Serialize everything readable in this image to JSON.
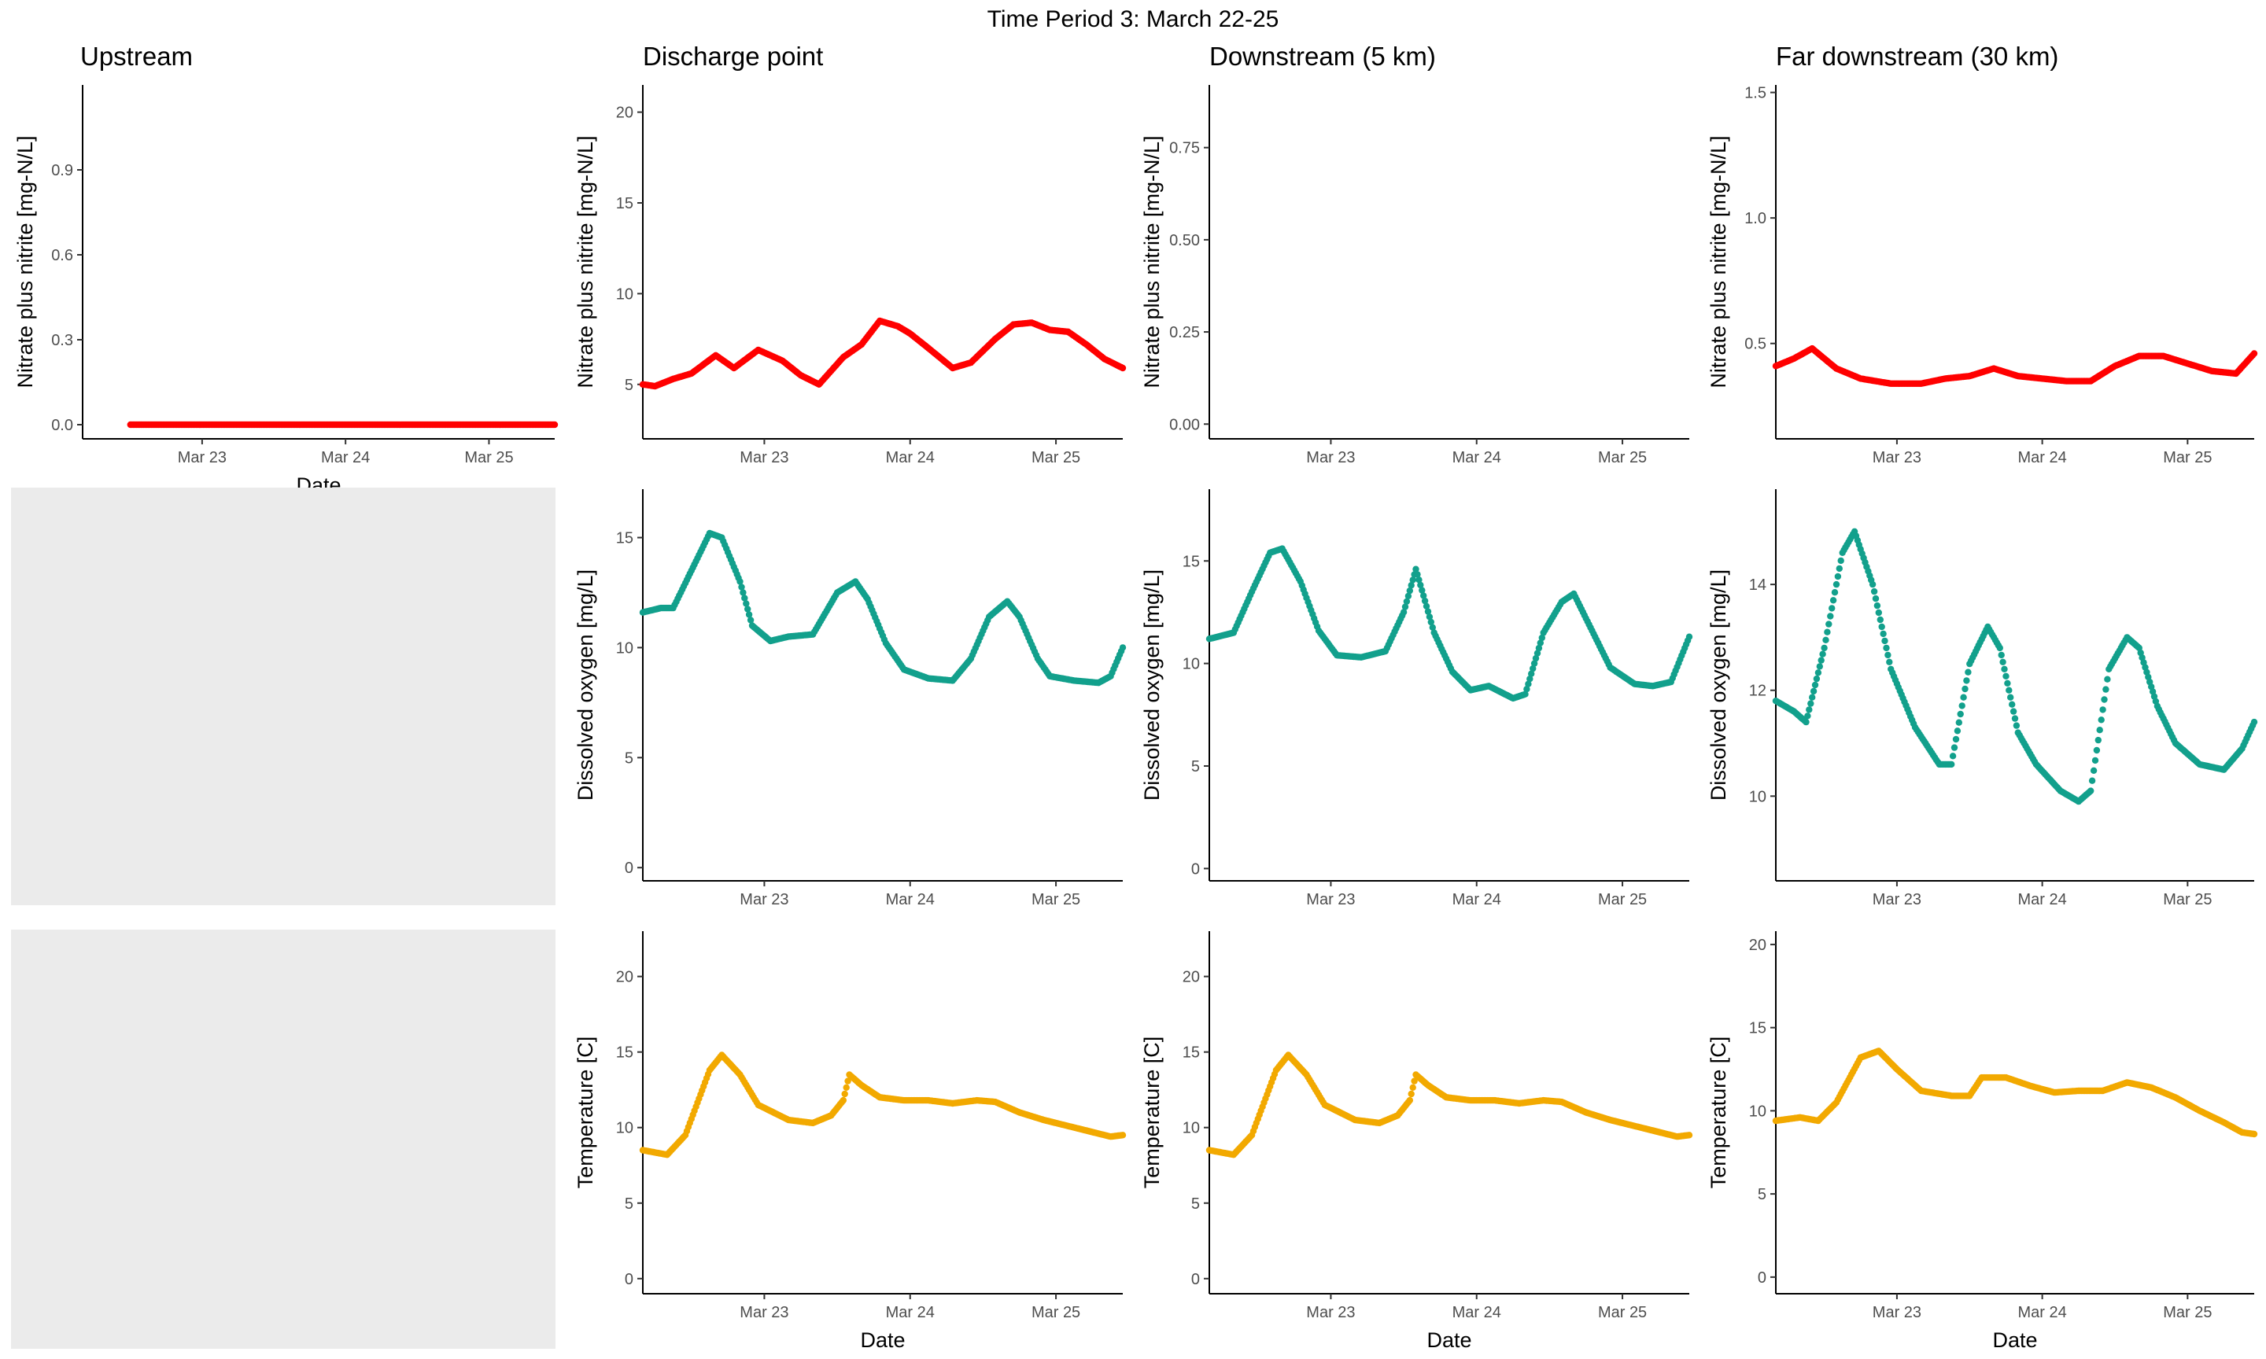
{
  "figure": {
    "title": "Time Period 3: March 22-25",
    "colors": {
      "nitrate": "#ff0000",
      "oxygen": "#12a08c",
      "temperature": "#f2a900",
      "empty_panel": "#ebebeb"
    }
  },
  "chart_data": [
    {
      "type": "scatter",
      "title": "Upstream",
      "xlabel": "Date",
      "ylabel": "Nitrate plus nitrite [mg-N/L]",
      "xlim": [
        "2023-03-22T04:00",
        "2023-03-25T11:00"
      ],
      "ylim": [
        -0.05,
        1.2
      ],
      "xticks": [
        "Mar 23",
        "Mar 24",
        "Mar 25"
      ],
      "yticks": [
        "0.0",
        "0.3",
        "0.6",
        "0.9"
      ],
      "color": "#ff0000",
      "x": [
        "2023-03-22T12:00",
        "2023-03-25T11:00"
      ],
      "y": [
        0.0,
        0.0
      ],
      "sample_interval_hours": 0.25
    },
    {
      "type": "scatter",
      "title": "Discharge point",
      "xlabel": "",
      "ylabel": "Nitrate plus nitrite [mg-N/L]",
      "xlim": [
        "2023-03-22T04:00",
        "2023-03-25T11:00"
      ],
      "ylim": [
        2.0,
        21.5
      ],
      "xticks": [
        "Mar 23",
        "Mar 24",
        "Mar 25"
      ],
      "yticks": [
        "5",
        "10",
        "15",
        "20"
      ],
      "color": "#ff0000",
      "x": [
        "2023-03-22T04:00",
        "2023-03-22T06:00",
        "2023-03-22T09:00",
        "2023-03-22T12:00",
        "2023-03-22T16:00",
        "2023-03-22T19:00",
        "2023-03-22T23:00",
        "2023-03-23T01:00",
        "2023-03-23T03:00",
        "2023-03-23T06:00",
        "2023-03-23T09:00",
        "2023-03-23T13:00",
        "2023-03-23T16:00",
        "2023-03-23T19:00",
        "2023-03-23T22:00",
        "2023-03-24T00:00",
        "2023-03-24T03:00",
        "2023-03-24T07:00",
        "2023-03-24T10:00",
        "2023-03-24T14:00",
        "2023-03-24T17:00",
        "2023-03-24T20:00",
        "2023-03-24T23:00",
        "2023-03-25T02:00",
        "2023-03-25T05:00",
        "2023-03-25T08:00",
        "2023-03-25T11:00"
      ],
      "y": [
        5.0,
        4.9,
        5.3,
        5.6,
        6.6,
        5.9,
        6.9,
        6.6,
        6.3,
        5.5,
        5.0,
        6.5,
        7.2,
        8.5,
        8.2,
        7.8,
        7.0,
        5.9,
        6.2,
        7.5,
        8.3,
        8.4,
        8.0,
        7.9,
        7.2,
        6.4,
        5.9
      ],
      "sample_interval_hours": 0.25
    },
    {
      "type": "scatter",
      "title": "Downstream (5 km)",
      "xlabel": "",
      "ylabel": "Nitrate plus nitrite [mg-N/L]",
      "xlim": [
        "2023-03-22T04:00",
        "2023-03-25T11:00"
      ],
      "ylim": [
        -0.04,
        0.92
      ],
      "xticks": [
        "Mar 23",
        "Mar 24",
        "Mar 25"
      ],
      "yticks": [
        "0.00",
        "0.25",
        "0.50",
        "0.75"
      ],
      "color": "#ff0000",
      "x": [],
      "y": []
    },
    {
      "type": "scatter",
      "title": "Far downstream (30 km)",
      "xlabel": "",
      "ylabel": "Nitrate plus nitrite [mg-N/L]",
      "xlim": [
        "2023-03-22T04:00",
        "2023-03-25T11:00"
      ],
      "ylim": [
        0.12,
        1.53
      ],
      "xticks": [
        "Mar 23",
        "Mar 24",
        "Mar 25"
      ],
      "yticks": [
        "0.5",
        "1.0",
        "1.5"
      ],
      "color": "#ff0000",
      "x": [
        "2023-03-22T04:00",
        "2023-03-22T07:00",
        "2023-03-22T10:00",
        "2023-03-22T14:00",
        "2023-03-22T18:00",
        "2023-03-22T23:00",
        "2023-03-23T04:00",
        "2023-03-23T08:00",
        "2023-03-23T12:00",
        "2023-03-23T16:00",
        "2023-03-23T20:00",
        "2023-03-24T00:00",
        "2023-03-24T04:00",
        "2023-03-24T08:00",
        "2023-03-24T12:00",
        "2023-03-24T16:00",
        "2023-03-24T20:00",
        "2023-03-25T00:00",
        "2023-03-25T04:00",
        "2023-03-25T08:00",
        "2023-03-25T11:00"
      ],
      "y": [
        0.41,
        0.44,
        0.48,
        0.4,
        0.36,
        0.34,
        0.34,
        0.36,
        0.37,
        0.4,
        0.37,
        0.36,
        0.35,
        0.35,
        0.41,
        0.45,
        0.45,
        0.42,
        0.39,
        0.38,
        0.46
      ],
      "sample_interval_hours": 0.25
    },
    {
      "type": "empty",
      "title": "",
      "color": "#ebebeb"
    },
    {
      "type": "scatter",
      "title": "",
      "xlabel": "",
      "ylabel": "Dissolved oxygen [mg/L]",
      "xlim": [
        "2023-03-22T04:00",
        "2023-03-25T11:00"
      ],
      "ylim": [
        -0.6,
        17.2
      ],
      "xticks": [
        "Mar 23",
        "Mar 24",
        "Mar 25"
      ],
      "yticks": [
        "0",
        "5",
        "10",
        "15"
      ],
      "color": "#12a08c",
      "x": [
        "2023-03-22T04:00",
        "2023-03-22T07:00",
        "2023-03-22T09:00",
        "2023-03-22T12:00",
        "2023-03-22T15:00",
        "2023-03-22T17:00",
        "2023-03-22T20:00",
        "2023-03-22T22:00",
        "2023-03-23T01:00",
        "2023-03-23T04:00",
        "2023-03-23T08:00",
        "2023-03-23T12:00",
        "2023-03-23T15:00",
        "2023-03-23T17:00",
        "2023-03-23T20:00",
        "2023-03-23T23:00",
        "2023-03-24T03:00",
        "2023-03-24T07:00",
        "2023-03-24T10:00",
        "2023-03-24T13:00",
        "2023-03-24T16:00",
        "2023-03-24T18:00",
        "2023-03-24T21:00",
        "2023-03-24T23:00",
        "2023-03-25T03:00",
        "2023-03-25T07:00",
        "2023-03-25T09:00",
        "2023-03-25T11:00"
      ],
      "y": [
        11.6,
        11.8,
        11.8,
        13.5,
        15.2,
        15.0,
        13.0,
        11.0,
        10.3,
        10.5,
        10.6,
        12.5,
        13.0,
        12.2,
        10.2,
        9.0,
        8.6,
        8.5,
        9.5,
        11.4,
        12.1,
        11.4,
        9.5,
        8.7,
        8.5,
        8.4,
        8.7,
        10.0
      ],
      "sample_interval_hours": 0.25
    },
    {
      "type": "scatter",
      "title": "",
      "xlabel": "",
      "ylabel": "Dissolved oxygen [mg/L]",
      "xlim": [
        "2023-03-22T04:00",
        "2023-03-25T11:00"
      ],
      "ylim": [
        -0.6,
        18.5
      ],
      "xticks": [
        "Mar 23",
        "Mar 24",
        "Mar 25"
      ],
      "yticks": [
        "0",
        "5",
        "10",
        "15"
      ],
      "color": "#12a08c",
      "x": [
        "2023-03-22T04:00",
        "2023-03-22T08:00",
        "2023-03-22T11:00",
        "2023-03-22T14:00",
        "2023-03-22T16:00",
        "2023-03-22T19:00",
        "2023-03-22T22:00",
        "2023-03-23T01:00",
        "2023-03-23T05:00",
        "2023-03-23T09:00",
        "2023-03-23T12:00",
        "2023-03-23T14:00",
        "2023-03-23T17:00",
        "2023-03-23T20:00",
        "2023-03-23T23:00",
        "2023-03-24T02:00",
        "2023-03-24T06:00",
        "2023-03-24T08:00",
        "2023-03-24T11:00",
        "2023-03-24T14:00",
        "2023-03-24T16:00",
        "2023-03-24T19:00",
        "2023-03-24T22:00",
        "2023-03-25T02:00",
        "2023-03-25T05:00",
        "2023-03-25T08:00",
        "2023-03-25T11:00"
      ],
      "y": [
        11.2,
        11.5,
        13.5,
        15.4,
        15.6,
        14.0,
        11.6,
        10.4,
        10.3,
        10.6,
        12.5,
        14.6,
        11.5,
        9.6,
        8.7,
        8.9,
        8.3,
        8.5,
        11.5,
        13.0,
        13.4,
        11.6,
        9.8,
        9.0,
        8.9,
        9.1,
        11.3
      ],
      "sample_interval_hours": 0.25
    },
    {
      "type": "scatter",
      "title": "",
      "xlabel": "",
      "ylabel": "Dissolved oxygen [mg/L]",
      "xlim": [
        "2023-03-22T04:00",
        "2023-03-25T11:00"
      ],
      "ylim": [
        8.4,
        15.8
      ],
      "xticks": [
        "Mar 23",
        "Mar 24",
        "Mar 25"
      ],
      "yticks": [
        "10",
        "12",
        "14"
      ],
      "color": "#12a08c",
      "x": [
        "2023-03-22T04:00",
        "2023-03-22T07:00",
        "2023-03-22T09:00",
        "2023-03-22T12:00",
        "2023-03-22T15:00",
        "2023-03-22T17:00",
        "2023-03-22T20:00",
        "2023-03-22T23:00",
        "2023-03-23T03:00",
        "2023-03-23T07:00",
        "2023-03-23T09:00",
        "2023-03-23T12:00",
        "2023-03-23T15:00",
        "2023-03-23T17:00",
        "2023-03-23T20:00",
        "2023-03-23T23:00",
        "2023-03-24T03:00",
        "2023-03-24T06:00",
        "2023-03-24T08:00",
        "2023-03-24T11:00",
        "2023-03-24T14:00",
        "2023-03-24T16:00",
        "2023-03-24T19:00",
        "2023-03-24T22:00",
        "2023-03-25T02:00",
        "2023-03-25T06:00",
        "2023-03-25T09:00",
        "2023-03-25T11:00"
      ],
      "y": [
        11.8,
        11.6,
        11.4,
        12.8,
        14.6,
        15.0,
        14.0,
        12.4,
        11.3,
        10.6,
        10.6,
        12.5,
        13.2,
        12.8,
        11.2,
        10.6,
        10.1,
        9.9,
        10.1,
        12.4,
        13.0,
        12.8,
        11.7,
        11.0,
        10.6,
        10.5,
        10.9,
        11.4
      ],
      "sample_interval_hours": 0.25
    },
    {
      "type": "empty",
      "title": "",
      "color": "#ebebeb"
    },
    {
      "type": "scatter",
      "title": "",
      "xlabel": "Date",
      "ylabel": "Temperature [C]",
      "xlim": [
        "2023-03-22T04:00",
        "2023-03-25T11:00"
      ],
      "ylim": [
        -1.0,
        23.0
      ],
      "xticks": [
        "Mar 23",
        "Mar 24",
        "Mar 25"
      ],
      "yticks": [
        "0",
        "5",
        "10",
        "15",
        "20"
      ],
      "color": "#f2a900",
      "x": [
        "2023-03-22T04:00",
        "2023-03-22T08:00",
        "2023-03-22T11:00",
        "2023-03-22T15:00",
        "2023-03-22T17:00",
        "2023-03-22T20:00",
        "2023-03-22T23:00",
        "2023-03-23T04:00",
        "2023-03-23T08:00",
        "2023-03-23T11:00",
        "2023-03-23T13:00",
        "2023-03-23T14:00",
        "2023-03-23T16:00",
        "2023-03-23T19:00",
        "2023-03-23T23:00",
        "2023-03-24T03:00",
        "2023-03-24T07:00",
        "2023-03-24T11:00",
        "2023-03-24T14:00",
        "2023-03-24T18:00",
        "2023-03-24T22:00",
        "2023-03-25T02:00",
        "2023-03-25T06:00",
        "2023-03-25T09:00",
        "2023-03-25T11:00"
      ],
      "y": [
        8.5,
        8.2,
        9.5,
        13.8,
        14.8,
        13.5,
        11.5,
        10.5,
        10.3,
        10.8,
        11.8,
        13.5,
        12.8,
        12.0,
        11.8,
        11.8,
        11.6,
        11.8,
        11.7,
        11.0,
        10.5,
        10.1,
        9.7,
        9.4,
        9.5
      ],
      "sample_interval_hours": 0.25
    },
    {
      "type": "scatter",
      "title": "",
      "xlabel": "Date",
      "ylabel": "Temperature [C]",
      "xlim": [
        "2023-03-22T04:00",
        "2023-03-25T11:00"
      ],
      "ylim": [
        -1.0,
        23.0
      ],
      "xticks": [
        "Mar 23",
        "Mar 24",
        "Mar 25"
      ],
      "yticks": [
        "0",
        "5",
        "10",
        "15",
        "20"
      ],
      "color": "#f2a900",
      "x": [
        "2023-03-22T04:00",
        "2023-03-22T08:00",
        "2023-03-22T11:00",
        "2023-03-22T15:00",
        "2023-03-22T17:00",
        "2023-03-22T20:00",
        "2023-03-22T23:00",
        "2023-03-23T04:00",
        "2023-03-23T08:00",
        "2023-03-23T11:00",
        "2023-03-23T13:00",
        "2023-03-23T14:00",
        "2023-03-23T16:00",
        "2023-03-23T19:00",
        "2023-03-23T23:00",
        "2023-03-24T03:00",
        "2023-03-24T07:00",
        "2023-03-24T11:00",
        "2023-03-24T14:00",
        "2023-03-24T18:00",
        "2023-03-24T22:00",
        "2023-03-25T02:00",
        "2023-03-25T06:00",
        "2023-03-25T09:00",
        "2023-03-25T11:00"
      ],
      "y": [
        8.5,
        8.2,
        9.5,
        13.8,
        14.8,
        13.5,
        11.5,
        10.5,
        10.3,
        10.8,
        11.8,
        13.5,
        12.8,
        12.0,
        11.8,
        11.8,
        11.6,
        11.8,
        11.7,
        11.0,
        10.5,
        10.1,
        9.7,
        9.4,
        9.5
      ],
      "sample_interval_hours": 0.25
    },
    {
      "type": "scatter",
      "title": "",
      "xlabel": "Date",
      "ylabel": "Temperature [C]",
      "xlim": [
        "2023-03-22T04:00",
        "2023-03-25T11:00"
      ],
      "ylim": [
        -1.0,
        20.8
      ],
      "xticks": [
        "Mar 23",
        "Mar 24",
        "Mar 25"
      ],
      "yticks": [
        "0",
        "5",
        "10",
        "15",
        "20"
      ],
      "color": "#f2a900",
      "x": [
        "2023-03-22T04:00",
        "2023-03-22T08:00",
        "2023-03-22T11:00",
        "2023-03-22T14:00",
        "2023-03-22T18:00",
        "2023-03-22T21:00",
        "2023-03-23T00:00",
        "2023-03-23T04:00",
        "2023-03-23T09:00",
        "2023-03-23T12:00",
        "2023-03-23T14:00",
        "2023-03-23T18:00",
        "2023-03-23T22:00",
        "2023-03-24T02:00",
        "2023-03-24T06:00",
        "2023-03-24T10:00",
        "2023-03-24T14:00",
        "2023-03-24T18:00",
        "2023-03-24T22:00",
        "2023-03-25T02:00",
        "2023-03-25T06:00",
        "2023-03-25T09:00",
        "2023-03-25T11:00"
      ],
      "y": [
        9.4,
        9.6,
        9.4,
        10.5,
        13.2,
        13.6,
        12.5,
        11.2,
        10.9,
        10.9,
        12.0,
        12.0,
        11.5,
        11.1,
        11.2,
        11.2,
        11.7,
        11.4,
        10.8,
        10.0,
        9.3,
        8.7,
        8.6
      ],
      "sample_interval_hours": 0.25
    }
  ]
}
